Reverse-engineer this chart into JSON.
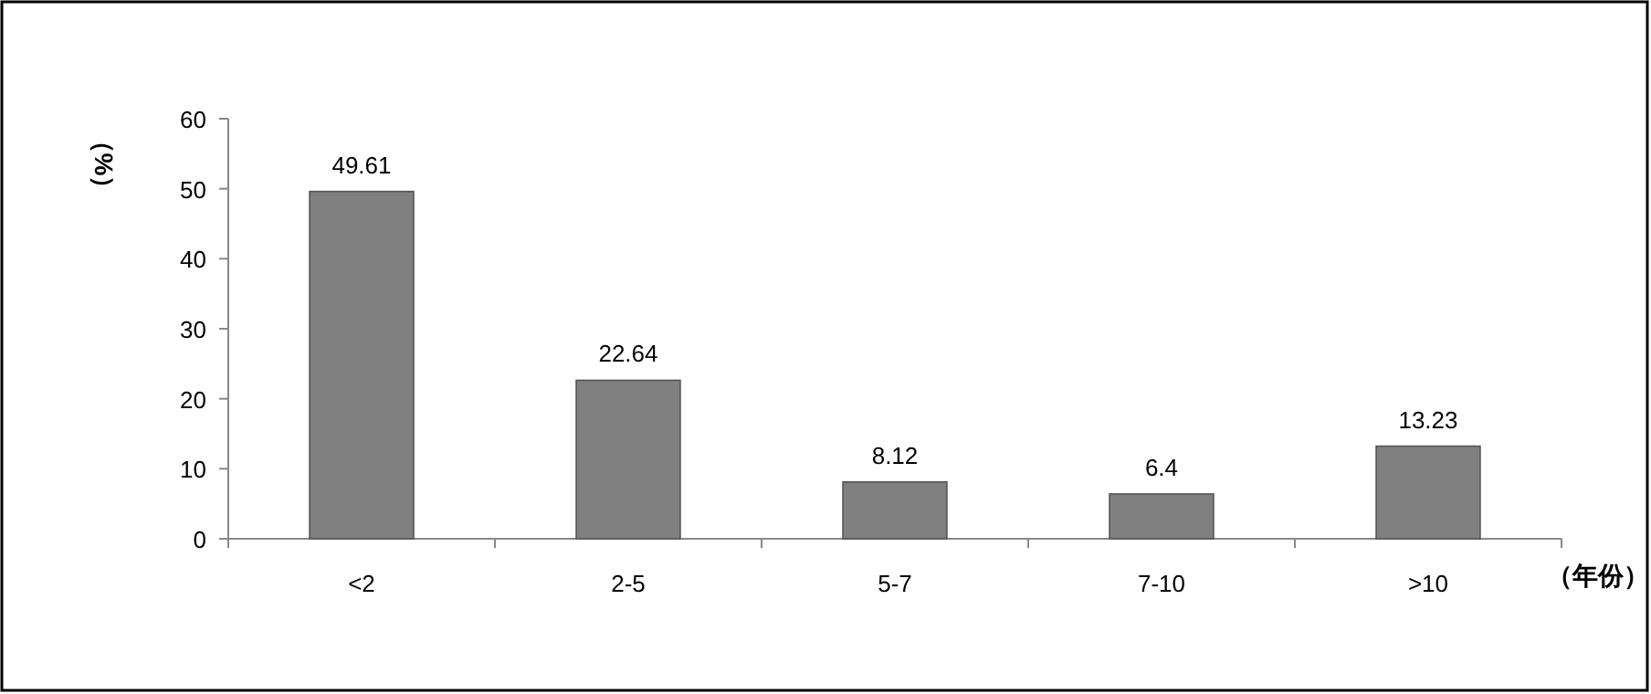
{
  "chart_data": {
    "type": "bar",
    "categories": [
      "<2",
      "2-5",
      "5-7",
      "7-10",
      ">10"
    ],
    "values": [
      49.61,
      22.64,
      8.12,
      6.4,
      13.23
    ],
    "color": "#808080",
    "ylim": [
      0,
      60
    ],
    "yticks": [
      0,
      10,
      20,
      30,
      40,
      50,
      60
    ],
    "ylabel": "（%）",
    "xlabel": "（年份）",
    "data_labels": true
  }
}
